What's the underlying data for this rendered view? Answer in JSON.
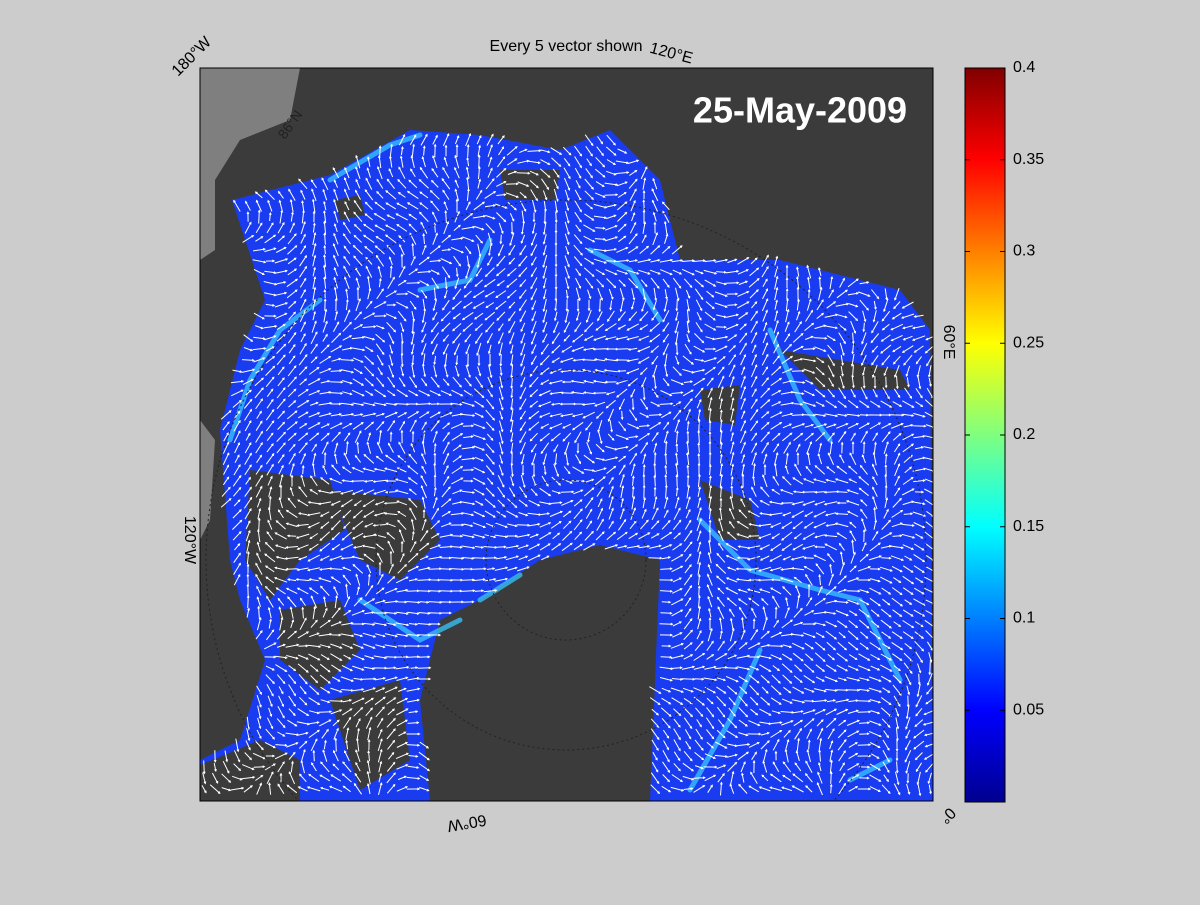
{
  "title": "Every 5 vector shown",
  "date_label": "25-May-2009",
  "graticule_labels": [
    "180°W",
    "120°E",
    "60°E",
    "0°",
    "60°W",
    "120°W",
    "86°N"
  ],
  "colorbar": {
    "lim": [
      0,
      0.4
    ],
    "ticks": [
      0.05,
      0.1,
      0.15,
      0.2,
      0.25,
      0.3,
      0.35,
      0.4
    ]
  }
}
